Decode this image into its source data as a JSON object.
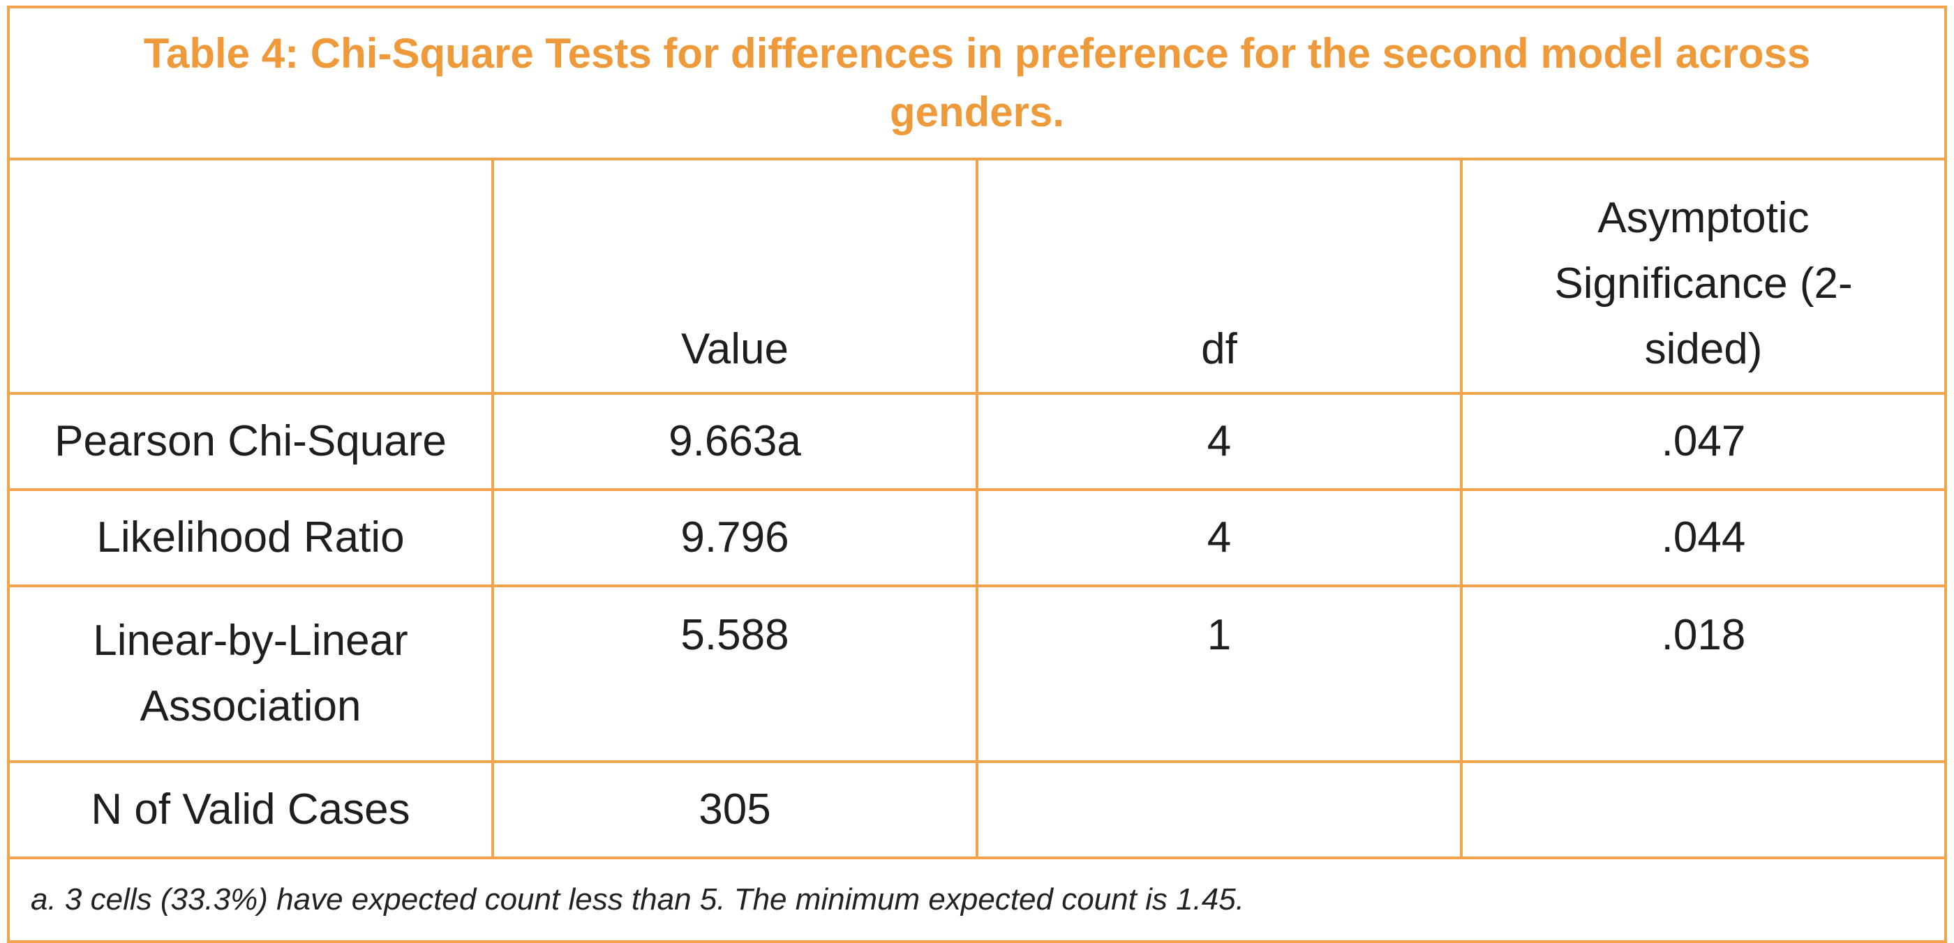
{
  "title": "Table 4: Chi-Square Tests for differences in preference for the second model across genders.",
  "columns": {
    "label": "",
    "value": "Value",
    "df": "df",
    "sig": "Asymptotic Significance (2-sided)"
  },
  "rows": [
    {
      "label": "Pearson Chi-Square",
      "value": "9.663a",
      "df": "4",
      "sig": ".047"
    },
    {
      "label": "Likelihood Ratio",
      "value": "9.796",
      "df": "4",
      "sig": ".044"
    },
    {
      "label": "Linear-by-Linear Association",
      "value": "5.588",
      "df": "1",
      "sig": ".018"
    },
    {
      "label": "N of Valid Cases",
      "value": "305",
      "df": "",
      "sig": ""
    }
  ],
  "footnote": "a. 3 cells (33.3%) have expected count less than 5. The minimum expected count is 1.45.",
  "colors": {
    "border": "#f0a34a",
    "title": "#ef9a3a",
    "text": "#1e1e1e"
  }
}
